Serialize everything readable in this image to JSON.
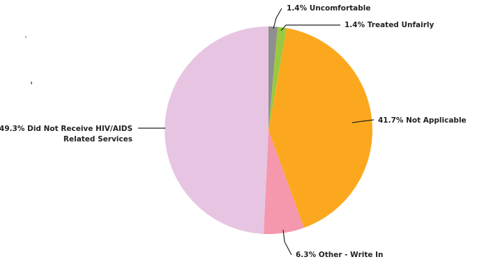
{
  "chart_data": {
    "type": "pie",
    "slices": [
      {
        "label_lines": [
          "1.4% Uncomfortable"
        ],
        "value": 1.4,
        "color": "#8f8f8f"
      },
      {
        "label_lines": [
          "1.4% Treated Unfairly"
        ],
        "value": 1.4,
        "color": "#9bc840"
      },
      {
        "label_lines": [
          "41.7% Not Applicable"
        ],
        "value": 41.7,
        "color": "#fca81f"
      },
      {
        "label_lines": [
          "6.3% Other - Write In"
        ],
        "value": 6.3,
        "color": "#f597ad"
      },
      {
        "label_lines": [
          "49.3% Did Not Receive HIV/AIDS",
          "Related Services"
        ],
        "value": 49.3,
        "color": "#e7c5e2"
      }
    ],
    "start": "12 o'clock",
    "direction": "clockwise",
    "legend": "none"
  }
}
